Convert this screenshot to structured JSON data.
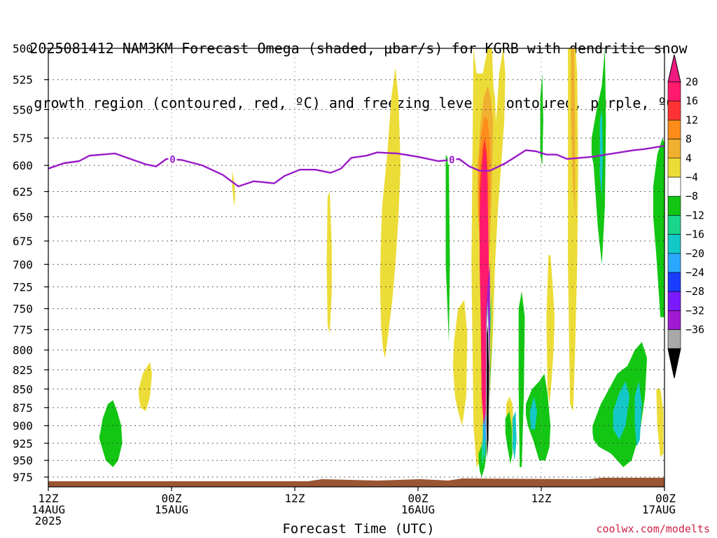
{
  "title": {
    "line1": "2025081412 NAM3KM Forecast Omega (shaded, μbar/s) for KGRB with dendritic snow",
    "line2": "growth region (contoured, red, ºC) and freezing level (contoured, purple, ºC)"
  },
  "credit": "coolwx.com/modelts",
  "chart_data": {
    "type": "heatmap",
    "title": "2025081412 NAM3KM Forecast Omega (shaded, μbar/s) for KGRB with dendritic snow growth region (contoured, red, ºC) and freezing level (contoured, purple, ºC)",
    "xlabel": "Forecast Time (UTC)",
    "ylabel": "",
    "x_hours_range": [
      0,
      60
    ],
    "y_pressure_range": [
      500,
      990
    ],
    "y_scale": "log-pressure",
    "y_ticks": [
      "500",
      "525",
      "550",
      "575",
      "600",
      "625",
      "650",
      "675",
      "700",
      "725",
      "750",
      "775",
      "800",
      "825",
      "850",
      "875",
      "900",
      "925",
      "950",
      "975"
    ],
    "x_ticks": [
      {
        "hour": 0,
        "l1": "12Z",
        "l2": "14AUG",
        "l3": "2025"
      },
      {
        "hour": 12,
        "l1": "00Z",
        "l2": "15AUG",
        "l3": ""
      },
      {
        "hour": 24,
        "l1": "12Z",
        "l2": "",
        "l3": ""
      },
      {
        "hour": 36,
        "l1": "00Z",
        "l2": "16AUG",
        "l3": ""
      },
      {
        "hour": 48,
        "l1": "12Z",
        "l2": "",
        "l3": ""
      },
      {
        "hour": 60,
        "l1": "00Z",
        "l2": "17AUG",
        "l3": ""
      }
    ],
    "colorbar": {
      "labels": [
        "20",
        "16",
        "12",
        "8",
        "4",
        "−4",
        "−8",
        "−12",
        "−16",
        "−20",
        "−24",
        "−28",
        "−32",
        "−36"
      ],
      "colors": [
        "#ff1a6e",
        "#ff3333",
        "#ff8c1a",
        "#f0b030",
        "#ecdc38",
        "#ffffff",
        "#13c613",
        "#19d68a",
        "#15c8c8",
        "#2aa8ff",
        "#1a3cff",
        "#7a1aff",
        "#a01ad2",
        "#a8a8a8",
        "#000000"
      ],
      "top_color": "#ee1a80"
    },
    "freezing_level": {
      "label": "0",
      "color": "#9a1ac8",
      "points": [
        [
          0,
          603
        ],
        [
          1.5,
          598
        ],
        [
          3,
          596
        ],
        [
          4,
          591
        ],
        [
          6.5,
          589
        ],
        [
          8,
          594
        ],
        [
          9.5,
          599
        ],
        [
          10.5,
          601
        ],
        [
          11.5,
          594
        ],
        [
          13,
          595
        ],
        [
          15,
          600
        ],
        [
          17,
          609
        ],
        [
          18.5,
          620
        ],
        [
          20,
          615
        ],
        [
          22,
          617
        ],
        [
          23,
          610
        ],
        [
          24.5,
          604
        ],
        [
          26,
          604
        ],
        [
          27.5,
          607
        ],
        [
          28.5,
          603
        ],
        [
          29.5,
          593
        ],
        [
          31,
          591
        ],
        [
          32,
          588
        ],
        [
          34,
          589
        ],
        [
          36,
          592
        ],
        [
          37,
          594
        ],
        [
          38,
          596
        ],
        [
          39,
          595
        ],
        [
          40,
          594
        ],
        [
          41,
          601
        ],
        [
          42,
          605
        ],
        [
          43,
          605
        ],
        [
          44.5,
          598
        ],
        [
          45.5,
          592
        ],
        [
          46.5,
          586
        ],
        [
          47.5,
          587
        ],
        [
          48.5,
          590
        ],
        [
          49.5,
          590
        ],
        [
          50.5,
          594
        ],
        [
          53,
          592
        ],
        [
          55,
          589
        ],
        [
          57,
          586
        ],
        [
          58,
          585
        ],
        [
          60,
          582
        ]
      ],
      "label_hours": [
        12.1,
        39.3
      ]
    },
    "surface_color": "#9a5533",
    "omega_regions": [
      {
        "color": "#ecdc38",
        "hours": [
          41.4,
          41.7,
          42.3,
          42.8,
          43.2,
          43.4,
          43.6,
          43.9,
          44.3,
          44.5,
          44.4,
          44.1,
          43.8,
          43.5,
          43.3,
          43.0,
          42.6,
          42.1,
          41.7,
          41.4,
          41.2
        ],
        "pressures": [
          500,
          520,
          520,
          500,
          500,
          540,
          560,
          520,
          500,
          520,
          560,
          600,
          640,
          700,
          780,
          850,
          900,
          950,
          960,
          900,
          700
        ]
      },
      {
        "color": "#ecdc38",
        "hours": [
          32.5,
          33.0,
          33.4,
          33.8,
          34.1,
          34.3,
          34.1,
          33.8,
          33.5,
          33.1,
          32.8,
          32.6,
          32.4,
          32.3,
          32.4
        ],
        "pressures": [
          640,
          590,
          540,
          515,
          540,
          600,
          650,
          700,
          740,
          780,
          810,
          800,
          770,
          720,
          670
        ]
      },
      {
        "color": "#ecdc38",
        "hours": [
          48.7,
          48.9,
          49.1,
          49.3,
          49.2,
          49.0,
          48.8,
          48.6,
          48.5
        ],
        "pressures": [
          690,
          690,
          720,
          760,
          800,
          840,
          870,
          850,
          760
        ]
      },
      {
        "color": "#ecdc38",
        "hours": [
          50.6,
          50.9,
          51.3,
          51.5,
          51.6,
          51.5,
          51.3,
          51.1,
          50.8,
          50.6
        ],
        "pressures": [
          500,
          495,
          495,
          520,
          600,
          700,
          800,
          880,
          870,
          700
        ]
      },
      {
        "color": "#f0b030",
        "hours": [
          50.9,
          51.2,
          51.3,
          51.3,
          51.1,
          50.9
        ],
        "pressures": [
          500,
          500,
          560,
          650,
          620,
          560
        ]
      },
      {
        "color": "#ecdc38",
        "hours": [
          27.2,
          27.4,
          27.6,
          27.6,
          27.4,
          27.2,
          27.1
        ],
        "pressures": [
          630,
          625,
          680,
          730,
          780,
          770,
          700
        ]
      },
      {
        "color": "#ecdc38",
        "hours": [
          39.5,
          39.9,
          40.5,
          40.8,
          40.7,
          40.3,
          39.9,
          39.6,
          39.4
        ],
        "pressures": [
          790,
          750,
          740,
          780,
          860,
          900,
          880,
          860,
          820
        ]
      },
      {
        "color": "#ecdc38",
        "hours": [
          8.8,
          9.2,
          9.9,
          10.1,
          9.9,
          9.5,
          9.0,
          8.8
        ],
        "pressures": [
          850,
          830,
          815,
          830,
          860,
          880,
          875,
          860
        ]
      },
      {
        "color": "#ecdc38",
        "hours": [
          17.9,
          18.1,
          18.2,
          18.1,
          17.9
        ],
        "pressures": [
          605,
          615,
          630,
          640,
          620
        ]
      },
      {
        "color": "#ecdc38",
        "hours": [
          44.6,
          44.9,
          45.2,
          45.3,
          45.1,
          44.8,
          44.6
        ],
        "pressures": [
          870,
          860,
          870,
          900,
          930,
          920,
          900
        ]
      },
      {
        "color": "#ecdc38",
        "hours": [
          59.2,
          59.6,
          59.9,
          59.9,
          59.6,
          59.3
        ],
        "pressures": [
          850,
          850,
          880,
          940,
          945,
          900
        ]
      },
      {
        "color": "#13c613",
        "hours": [
          5.0,
          5.3,
          5.8,
          6.3,
          6.7,
          7.1,
          7.2,
          6.8,
          6.3,
          5.6,
          5.2,
          5.0,
          4.9
        ],
        "pressures": [
          915,
          890,
          870,
          865,
          880,
          900,
          925,
          950,
          960,
          950,
          930,
          920,
          905
        ]
      },
      {
        "color": "#13c613",
        "hours": [
          38.7,
          39.0,
          39.1,
          39.0,
          38.7
        ],
        "pressures": [
          590,
          595,
          700,
          790,
          700
        ]
      },
      {
        "color": "#13c613",
        "hours": [
          41.9,
          42.4,
          42.9,
          43.1,
          43.3,
          43.4,
          43.4,
          43.3,
          43.1,
          42.8,
          42.5,
          42.2,
          42.0,
          41.9
        ],
        "pressures": [
          940,
          920,
          880,
          800,
          700,
          650,
          640,
          700,
          820,
          920,
          960,
          975,
          965,
          950
        ]
      },
      {
        "color": "#13c613",
        "hours": [
          44.5,
          44.9,
          45.1,
          45.2,
          45.0,
          44.7,
          44.5
        ],
        "pressures": [
          890,
          880,
          900,
          940,
          955,
          930,
          910
        ]
      },
      {
        "color": "#13c613",
        "hours": [
          45.8,
          46.1,
          46.4,
          46.3,
          46.1,
          45.9,
          45.8
        ],
        "pressures": [
          750,
          730,
          760,
          860,
          960,
          960,
          850
        ]
      },
      {
        "color": "#13c613",
        "hours": [
          46.5,
          47.1,
          47.8,
          48.3,
          48.6,
          48.9,
          48.8,
          48.4,
          47.8,
          47.2,
          46.7,
          46.5
        ],
        "pressures": [
          870,
          850,
          840,
          830,
          855,
          900,
          930,
          950,
          950,
          920,
          900,
          885
        ]
      },
      {
        "color": "#13c613",
        "hours": [
          47.9,
          48.1,
          48.2,
          48.1,
          47.9
        ],
        "pressures": [
          540,
          520,
          560,
          600,
          590
        ]
      },
      {
        "color": "#13c613",
        "hours": [
          52.9,
          53.4,
          53.9,
          54.2,
          54.3,
          54.2,
          53.9,
          53.5,
          53.1,
          52.9
        ],
        "pressures": [
          575,
          550,
          530,
          500,
          560,
          640,
          700,
          660,
          600,
          590
        ]
      },
      {
        "color": "#13c613",
        "hours": [
          53.0,
          53.8,
          54.6,
          55.4,
          56.4,
          57.1,
          57.8,
          58.3,
          58.1,
          57.6,
          56.8,
          56.0,
          55.4,
          54.8,
          54.2,
          53.6,
          53.1,
          53.0
        ],
        "pressures": [
          900,
          870,
          850,
          830,
          820,
          800,
          790,
          810,
          860,
          910,
          950,
          960,
          950,
          940,
          935,
          930,
          920,
          910
        ]
      },
      {
        "color": "#15c8c8",
        "hours": [
          55.0,
          55.6,
          56.2,
          56.6,
          56.2,
          55.6,
          55.0
        ],
        "pressures": [
          880,
          855,
          840,
          860,
          900,
          920,
          905
        ]
      },
      {
        "color": "#15c8c8",
        "hours": [
          57.1,
          57.5,
          57.8,
          57.6,
          57.3,
          57.1
        ],
        "pressures": [
          860,
          840,
          870,
          920,
          930,
          900
        ]
      },
      {
        "color": "#13c613",
        "hours": [
          58.9,
          59.3,
          59.8,
          60.0,
          60.0,
          59.6,
          59.2,
          58.9
        ],
        "pressures": [
          620,
          590,
          575,
          580,
          760,
          760,
          690,
          650
        ]
      },
      {
        "color": "#15c8c8",
        "hours": [
          53.7,
          53.9,
          54.0,
          53.9,
          53.7
        ],
        "pressures": [
          560,
          550,
          590,
          630,
          610
        ]
      },
      {
        "color": "#15c8c8",
        "hours": [
          45.2,
          45.5,
          45.6,
          45.4,
          45.2
        ],
        "pressures": [
          890,
          880,
          920,
          950,
          930
        ]
      },
      {
        "color": "#15c8c8",
        "hours": [
          46.9,
          47.3,
          47.6,
          47.4,
          47.0,
          46.9
        ],
        "pressures": [
          880,
          860,
          880,
          905,
          905,
          890
        ]
      },
      {
        "color": "#19d68a",
        "hours": [
          42.2,
          42.6,
          42.9,
          43.1,
          43.2,
          43.1,
          42.8,
          42.5,
          42.3,
          42.2
        ],
        "pressures": [
          930,
          880,
          820,
          760,
          700,
          700,
          800,
          920,
          960,
          950
        ]
      },
      {
        "color": "#15c8c8",
        "hours": [
          42.3,
          42.6,
          42.8,
          43.0,
          43.0,
          42.8,
          42.5,
          42.3
        ],
        "pressures": [
          900,
          850,
          790,
          720,
          780,
          880,
          950,
          930
        ]
      },
      {
        "color": "#2aa8ff",
        "hours": [
          42.4,
          42.7,
          42.9,
          42.9,
          42.6,
          42.4
        ],
        "pressures": [
          880,
          820,
          760,
          820,
          920,
          920
        ]
      },
      {
        "color": "#ecdc38",
        "hours": [
          41.6,
          41.9,
          42.3,
          42.7,
          43.1,
          43.5,
          43.7,
          43.6,
          43.3,
          43.0,
          42.8,
          42.5,
          42.3,
          42.0,
          41.8,
          41.6
        ],
        "pressures": [
          640,
          600,
          560,
          520,
          520,
          540,
          600,
          660,
          700,
          760,
          820,
          860,
          840,
          760,
          700,
          660
        ]
      },
      {
        "color": "#f0b030",
        "hours": [
          41.8,
          42.1,
          42.4,
          42.8,
          43.1,
          43.3,
          43.2,
          43.0,
          42.7,
          42.5,
          42.3,
          42.0,
          41.8
        ],
        "pressures": [
          600,
          560,
          540,
          530,
          540,
          560,
          620,
          680,
          720,
          760,
          740,
          680,
          640
        ]
      },
      {
        "color": "#ff8c1a",
        "hours": [
          41.9,
          42.2,
          42.5,
          42.8,
          43.0,
          43.0,
          42.8,
          42.6,
          42.4,
          42.2,
          41.9
        ],
        "pressures": [
          600,
          570,
          555,
          560,
          580,
          630,
          680,
          720,
          740,
          700,
          650
        ]
      },
      {
        "color": "#ff3333",
        "hours": [
          42.0,
          42.3,
          42.5,
          42.7,
          42.8,
          42.7,
          42.5,
          42.3,
          42.1,
          42.0
        ],
        "pressures": [
          620,
          585,
          575,
          590,
          620,
          680,
          720,
          760,
          720,
          660
        ]
      },
      {
        "color": "#ff1a6e",
        "hours": [
          42.0,
          42.3,
          42.5,
          42.7,
          42.8,
          42.9,
          42.9,
          42.8,
          42.6,
          42.4,
          42.2,
          42.1,
          42.0
        ],
        "pressures": [
          650,
          600,
          585,
          600,
          640,
          700,
          760,
          840,
          880,
          900,
          860,
          760,
          700
        ]
      },
      {
        "color": "#a01ad2",
        "hours": [
          42.6,
          42.8,
          43.0,
          43.0,
          42.9,
          42.7,
          42.6
        ],
        "pressures": [
          760,
          720,
          700,
          800,
          900,
          940,
          880
        ]
      },
      {
        "color": "#7a1aff",
        "hours": [
          42.7,
          42.85,
          42.95,
          42.9,
          42.75,
          42.65
        ],
        "pressures": [
          780,
          740,
          760,
          860,
          920,
          860
        ]
      },
      {
        "color": "#a8a8a8",
        "hours": [
          42.65,
          42.8,
          42.95,
          42.9,
          42.7,
          42.6
        ],
        "pressures": [
          760,
          740,
          800,
          920,
          950,
          900
        ]
      },
      {
        "color": "#ffffff",
        "hours": [
          42.67,
          42.8,
          42.93,
          42.88,
          42.72,
          42.64
        ],
        "pressures": [
          780,
          755,
          810,
          925,
          950,
          910
        ]
      },
      {
        "color": "#000000",
        "hours": [
          42.7,
          42.8,
          42.9,
          42.85,
          42.74,
          42.68
        ],
        "pressures": [
          780,
          770,
          820,
          920,
          945,
          900
        ]
      }
    ]
  }
}
